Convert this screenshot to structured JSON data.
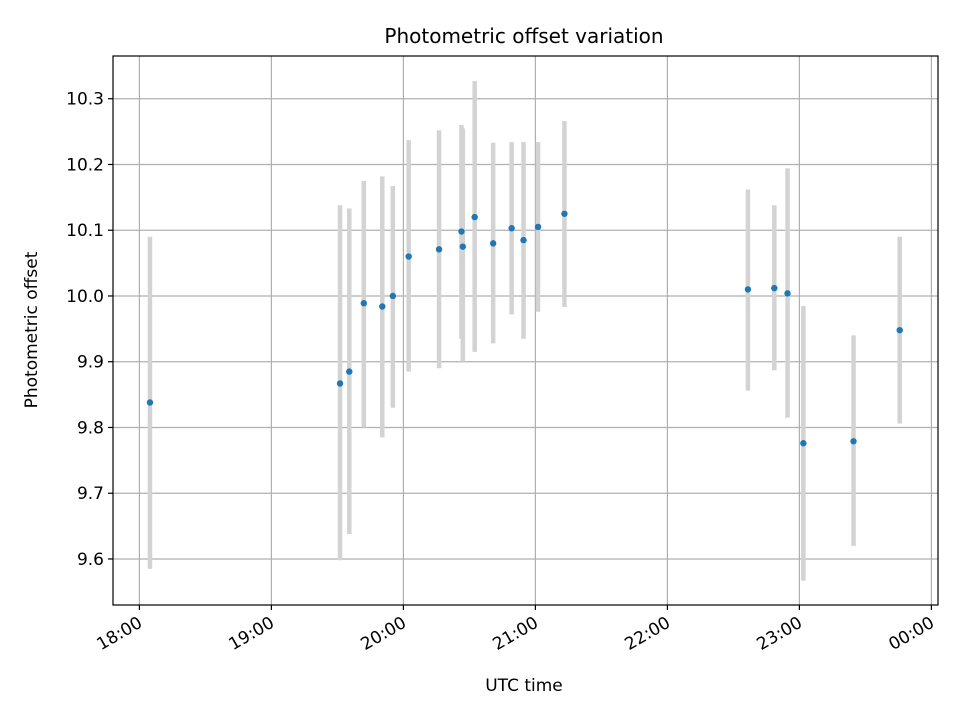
{
  "chart_data": {
    "type": "scatter",
    "title": "Photometric offset variation",
    "xlabel": "UTC time",
    "ylabel": "Photometric offset",
    "x_unit": "hours",
    "xlim": [
      17.8,
      24.05
    ],
    "ylim": [
      9.53,
      10.365
    ],
    "grid": true,
    "x_ticks": [
      {
        "value": 18,
        "label": "18:00"
      },
      {
        "value": 19,
        "label": "19:00"
      },
      {
        "value": 20,
        "label": "20:00"
      },
      {
        "value": 21,
        "label": "21:00"
      },
      {
        "value": 22,
        "label": "22:00"
      },
      {
        "value": 23,
        "label": "23:00"
      },
      {
        "value": 24,
        "label": "00:00"
      }
    ],
    "y_ticks": [
      {
        "value": 9.6,
        "label": "9.6"
      },
      {
        "value": 9.7,
        "label": "9.7"
      },
      {
        "value": 9.8,
        "label": "9.8"
      },
      {
        "value": 9.9,
        "label": "9.9"
      },
      {
        "value": 10.0,
        "label": "10.0"
      },
      {
        "value": 10.1,
        "label": "10.1"
      },
      {
        "value": 10.2,
        "label": "10.2"
      },
      {
        "value": 10.3,
        "label": "10.3"
      }
    ],
    "colors": {
      "marker": "#1f77b4",
      "errorbar": "#d3d3d3",
      "grid": "#b0b0b0"
    },
    "points": [
      {
        "x": 18.08,
        "y": 9.838,
        "lo": 9.585,
        "hi": 10.09
      },
      {
        "x": 19.52,
        "y": 9.867,
        "lo": 9.598,
        "hi": 10.138
      },
      {
        "x": 19.59,
        "y": 9.885,
        "lo": 9.638,
        "hi": 10.133
      },
      {
        "x": 19.7,
        "y": 9.989,
        "lo": 9.8,
        "hi": 10.175
      },
      {
        "x": 19.84,
        "y": 9.984,
        "lo": 9.785,
        "hi": 10.182
      },
      {
        "x": 19.92,
        "y": 10.0,
        "lo": 9.83,
        "hi": 10.167
      },
      {
        "x": 20.04,
        "y": 10.06,
        "lo": 9.885,
        "hi": 10.237
      },
      {
        "x": 20.27,
        "y": 10.071,
        "lo": 9.89,
        "hi": 10.252
      },
      {
        "x": 20.44,
        "y": 10.098,
        "lo": 9.935,
        "hi": 10.26
      },
      {
        "x": 20.45,
        "y": 10.075,
        "lo": 9.9,
        "hi": 10.255
      },
      {
        "x": 20.54,
        "y": 10.12,
        "lo": 9.915,
        "hi": 10.327
      },
      {
        "x": 20.68,
        "y": 10.08,
        "lo": 9.928,
        "hi": 10.233
      },
      {
        "x": 20.82,
        "y": 10.103,
        "lo": 9.972,
        "hi": 10.234
      },
      {
        "x": 20.91,
        "y": 10.085,
        "lo": 9.935,
        "hi": 10.234
      },
      {
        "x": 21.02,
        "y": 10.105,
        "lo": 9.976,
        "hi": 10.234
      },
      {
        "x": 21.22,
        "y": 10.125,
        "lo": 9.983,
        "hi": 10.266
      },
      {
        "x": 22.61,
        "y": 10.01,
        "lo": 9.856,
        "hi": 10.162
      },
      {
        "x": 22.81,
        "y": 10.012,
        "lo": 9.887,
        "hi": 10.138
      },
      {
        "x": 22.91,
        "y": 10.004,
        "lo": 9.815,
        "hi": 10.194
      },
      {
        "x": 23.03,
        "y": 9.776,
        "lo": 9.567,
        "hi": 9.985
      },
      {
        "x": 23.41,
        "y": 9.779,
        "lo": 9.62,
        "hi": 9.94
      },
      {
        "x": 23.76,
        "y": 9.948,
        "lo": 9.806,
        "hi": 10.09
      }
    ]
  }
}
